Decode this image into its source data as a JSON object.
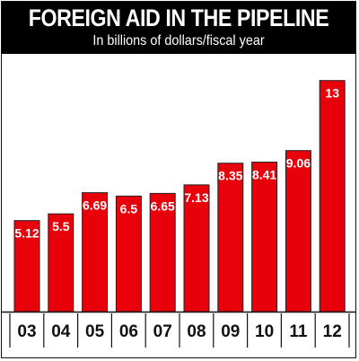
{
  "header": {
    "title": "FOREIGN AID IN THE PIPELINE",
    "subtitle": "In billions of dollars/fiscal year"
  },
  "colors": {
    "bar": "#e8000b",
    "bar_outline": "#222222",
    "header_bg": "#000000",
    "header_text": "#ffffff",
    "value_text": "#ffffff",
    "axis_text": "#111111"
  },
  "chart_data": {
    "type": "bar",
    "title": "FOREIGN AID IN THE PIPELINE",
    "subtitle": "In billions of dollars/fiscal year",
    "categories": [
      "03",
      "04",
      "05",
      "06",
      "07",
      "08",
      "09",
      "10",
      "11",
      "12"
    ],
    "values": [
      5.12,
      5.5,
      6.69,
      6.5,
      6.65,
      7.13,
      8.35,
      8.41,
      9.06,
      13
    ],
    "value_labels": [
      "5.12",
      "5.5",
      "6.69",
      "6.5",
      "6.65",
      "7.13",
      "8.35",
      "8.41",
      "9.06",
      "13"
    ],
    "ylim": [
      0,
      14.5
    ],
    "grid": false,
    "legend": "none"
  }
}
